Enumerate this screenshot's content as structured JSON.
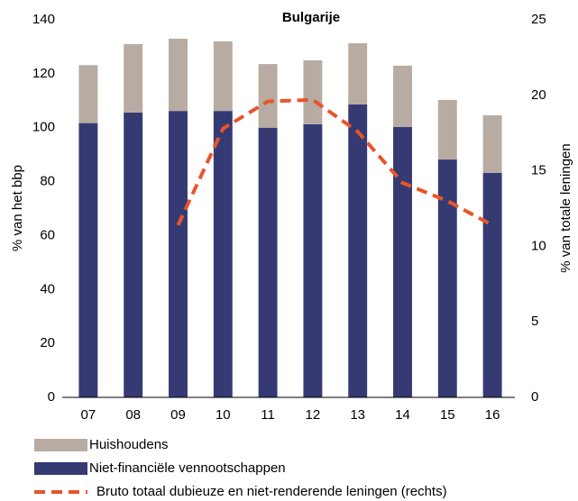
{
  "chart_data": {
    "type": "bar",
    "stacked": true,
    "title": "Bulgarije",
    "y_label": "% van het bbp",
    "y2_label": "% van totale leningen",
    "categories": [
      "07",
      "08",
      "09",
      "10",
      "11",
      "12",
      "13",
      "14",
      "15",
      "16"
    ],
    "series": [
      {
        "name": "Niet-financiële vennootschappen",
        "color": "#353a73",
        "values": [
          101.7,
          105.6,
          106.2,
          106.2,
          100,
          101.3,
          108.6,
          100.3,
          88.2,
          83.2
        ]
      },
      {
        "name": "Huishoudens",
        "color": "#b8aba2",
        "values": [
          21.5,
          25.4,
          26.8,
          25.8,
          23.6,
          23.7,
          22.7,
          22.7,
          22.1,
          21.4
        ]
      },
      {
        "name": "Bruto totaal dubieuze en niet-renderende leningen (rechts)",
        "color": "#e8552a",
        "type": "line",
        "axis": "y2",
        "dashed": true,
        "values": [
          null,
          null,
          11.4,
          17.8,
          19.6,
          19.7,
          17.6,
          14.2,
          13.0,
          11.4
        ]
      }
    ],
    "legend_order": [
      1,
      0,
      2
    ],
    "ylim": [
      0,
      140
    ],
    "yticks": [
      0,
      20,
      40,
      60,
      80,
      100,
      120,
      140
    ],
    "y2lim": [
      0,
      25
    ],
    "y2ticks": [
      0,
      5,
      10,
      15,
      20,
      25
    ]
  }
}
